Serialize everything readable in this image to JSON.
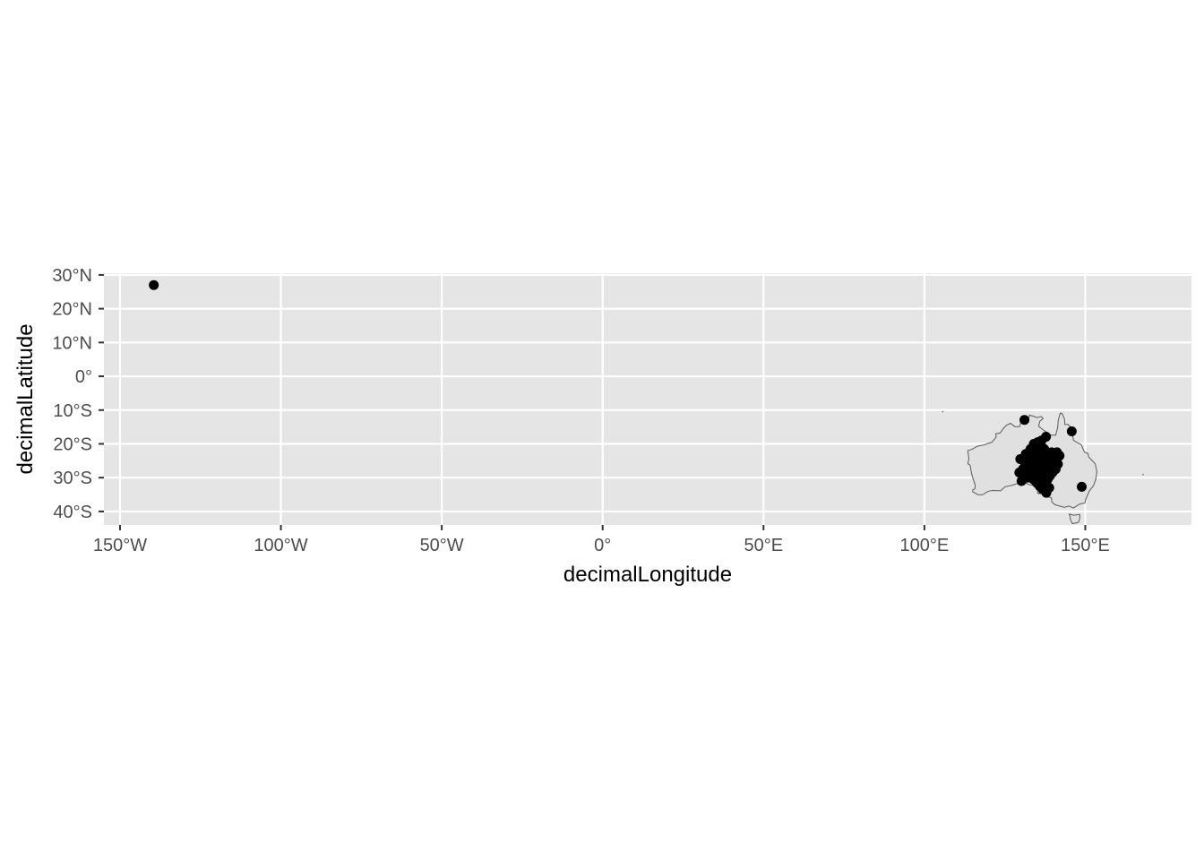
{
  "chart_data": {
    "type": "scatter",
    "xlabel": "decimalLongitude",
    "ylabel": "decimalLatitude",
    "xlim": [
      -155,
      183
    ],
    "ylim": [
      -44,
      30.5
    ],
    "x_ticks": [
      {
        "value": -150,
        "label": "150°W"
      },
      {
        "value": -100,
        "label": "100°W"
      },
      {
        "value": -50,
        "label": "50°W"
      },
      {
        "value": 0,
        "label": "0°"
      },
      {
        "value": 50,
        "label": "50°E"
      },
      {
        "value": 100,
        "label": "100°E"
      },
      {
        "value": 150,
        "label": "150°E"
      }
    ],
    "y_ticks": [
      {
        "value": 30,
        "label": "30°N"
      },
      {
        "value": 20,
        "label": "20°N"
      },
      {
        "value": 10,
        "label": "10°N"
      },
      {
        "value": 0,
        "label": "0°"
      },
      {
        "value": -10,
        "label": "10°S"
      },
      {
        "value": -20,
        "label": "20°S"
      },
      {
        "value": -30,
        "label": "30°S"
      },
      {
        "value": -40,
        "label": "40°S"
      }
    ],
    "grid": true,
    "colors": {
      "panel": "#e5e5e5",
      "grid": "#ffffff",
      "land_fill": "#e0e0e0",
      "land_outline": "#5a5a5a",
      "point": "#000000"
    },
    "basemap_outline": [
      [
        113.5,
        -22.0
      ],
      [
        114.2,
        -21.8
      ],
      [
        115.0,
        -21.5
      ],
      [
        116.5,
        -20.7
      ],
      [
        118.5,
        -20.3
      ],
      [
        121.0,
        -19.5
      ],
      [
        122.3,
        -18.0
      ],
      [
        122.2,
        -17.0
      ],
      [
        123.5,
        -16.8
      ],
      [
        124.5,
        -15.5
      ],
      [
        125.5,
        -14.5
      ],
      [
        126.8,
        -13.9
      ],
      [
        128.1,
        -14.9
      ],
      [
        129.6,
        -14.9
      ],
      [
        130.0,
        -13.5
      ],
      [
        130.3,
        -12.6
      ],
      [
        131.0,
        -12.2
      ],
      [
        132.6,
        -12.1
      ],
      [
        132.6,
        -11.5
      ],
      [
        133.8,
        -11.8
      ],
      [
        135.0,
        -12.2
      ],
      [
        136.3,
        -11.9
      ],
      [
        136.9,
        -12.5
      ],
      [
        135.9,
        -13.3
      ],
      [
        135.5,
        -14.8
      ],
      [
        137.0,
        -15.9
      ],
      [
        139.3,
        -17.4
      ],
      [
        140.8,
        -17.4
      ],
      [
        141.4,
        -15.2
      ],
      [
        141.6,
        -13.0
      ],
      [
        142.2,
        -10.9
      ],
      [
        142.8,
        -11.0
      ],
      [
        143.5,
        -12.5
      ],
      [
        143.7,
        -14.3
      ],
      [
        144.6,
        -14.2
      ],
      [
        145.4,
        -15.0
      ],
      [
        145.4,
        -16.4
      ],
      [
        146.1,
        -17.8
      ],
      [
        146.4,
        -19.0
      ],
      [
        148.8,
        -20.3
      ],
      [
        149.7,
        -22.4
      ],
      [
        150.9,
        -22.9
      ],
      [
        151.0,
        -23.8
      ],
      [
        152.1,
        -24.9
      ],
      [
        153.1,
        -25.9
      ],
      [
        153.6,
        -28.2
      ],
      [
        153.3,
        -30.4
      ],
      [
        152.6,
        -32.3
      ],
      [
        151.3,
        -33.9
      ],
      [
        150.7,
        -35.2
      ],
      [
        150.1,
        -36.5
      ],
      [
        149.9,
        -37.5
      ],
      [
        148.3,
        -37.8
      ],
      [
        146.3,
        -39.0
      ],
      [
        144.9,
        -38.4
      ],
      [
        143.5,
        -38.8
      ],
      [
        141.6,
        -38.3
      ],
      [
        140.6,
        -38.0
      ],
      [
        139.6,
        -37.2
      ],
      [
        139.5,
        -36.0
      ],
      [
        138.1,
        -35.6
      ],
      [
        138.4,
        -34.4
      ],
      [
        137.7,
        -35.1
      ],
      [
        136.9,
        -35.3
      ],
      [
        137.5,
        -34.0
      ],
      [
        137.9,
        -33.1
      ],
      [
        137.4,
        -33.6
      ],
      [
        136.4,
        -34.1
      ],
      [
        135.6,
        -34.8
      ],
      [
        135.2,
        -34.5
      ],
      [
        135.2,
        -33.9
      ],
      [
        134.6,
        -33.2
      ],
      [
        133.9,
        -32.3
      ],
      [
        132.3,
        -32.0
      ],
      [
        131.3,
        -31.5
      ],
      [
        129.5,
        -31.6
      ],
      [
        127.1,
        -32.3
      ],
      [
        125.1,
        -32.7
      ],
      [
        123.7,
        -33.9
      ],
      [
        121.3,
        -33.8
      ],
      [
        119.9,
        -34.0
      ],
      [
        118.0,
        -35.1
      ],
      [
        116.6,
        -35.0
      ],
      [
        115.0,
        -34.2
      ],
      [
        115.0,
        -33.6
      ],
      [
        115.7,
        -33.3
      ],
      [
        115.8,
        -32.2
      ],
      [
        115.0,
        -30.0
      ],
      [
        114.6,
        -28.5
      ],
      [
        114.2,
        -26.3
      ],
      [
        113.5,
        -25.9
      ],
      [
        113.8,
        -24.4
      ],
      [
        113.5,
        -22.0
      ]
    ],
    "basemap_islands": [
      [
        [
          145.0,
          -40.8
        ],
        [
          146.4,
          -41.1
        ],
        [
          148.3,
          -40.9
        ],
        [
          148.3,
          -42.1
        ],
        [
          147.9,
          -43.2
        ],
        [
          147.1,
          -43.4
        ],
        [
          146.0,
          -43.6
        ],
        [
          145.4,
          -42.5
        ],
        [
          145.2,
          -41.3
        ],
        [
          145.0,
          -40.8
        ]
      ],
      [
        [
          105.6,
          -10.4
        ],
        [
          105.7,
          -10.4
        ],
        [
          105.7,
          -10.5
        ],
        [
          105.6,
          -10.5
        ],
        [
          105.6,
          -10.4
        ]
      ],
      [
        [
          167.9,
          -29.0
        ],
        [
          168.0,
          -29.0
        ],
        [
          168.0,
          -29.1
        ],
        [
          167.9,
          -29.1
        ],
        [
          167.9,
          -29.0
        ]
      ]
    ],
    "series": [
      {
        "x": [
          -139.5,
          131.1,
          145.8,
          137.8,
          148.9,
          136.4,
          135.2,
          134.0,
          133.0,
          132.4,
          131.5,
          129.8,
          129.5,
          130.2,
          131.0,
          132.0,
          132.8,
          133.5,
          134.2,
          134.8,
          135.5,
          136.0,
          136.5,
          137.0,
          137.5,
          138.0,
          138.5,
          139.0,
          139.5,
          140.0,
          140.5,
          141.2,
          142.0,
          141.5,
          140.8,
          139.8,
          139.0,
          138.3,
          137.6,
          136.9,
          136.2,
          135.6,
          135.0,
          134.4,
          133.8,
          133.2,
          132.6,
          131.9,
          131.2,
          130.6,
          131.5,
          132.5,
          133.5,
          134.5,
          135.5,
          136.5,
          137.5,
          138.5,
          139.5,
          140.3,
          138.8,
          137.9,
          136.8,
          135.9,
          134.9,
          133.9,
          132.9,
          136.2,
          137.2,
          135.4,
          134.6,
          136.8,
          137.8,
          138.2,
          135.7,
          134.3,
          133.6,
          136.4,
          137.3,
          135.0,
          134.0,
          138.0
        ],
        "y": [
          27.0,
          -12.9,
          -16.3,
          -17.9,
          -32.7,
          -19.0,
          -19.5,
          -20.0,
          -21.5,
          -22.5,
          -23.0,
          -24.5,
          -28.5,
          -31.0,
          -27.0,
          -26.0,
          -25.0,
          -24.0,
          -23.0,
          -22.0,
          -21.0,
          -22.5,
          -23.5,
          -24.5,
          -22.0,
          -23.0,
          -24.0,
          -25.0,
          -22.5,
          -23.0,
          -24.5,
          -22.5,
          -23.5,
          -26.0,
          -27.5,
          -28.5,
          -29.5,
          -30.5,
          -31.5,
          -32.0,
          -31.0,
          -30.0,
          -29.0,
          -28.0,
          -27.0,
          -28.5,
          -29.5,
          -30.0,
          -29.0,
          -27.5,
          -25.5,
          -26.5,
          -27.5,
          -25.5,
          -26.5,
          -27.5,
          -28.5,
          -27.0,
          -26.5,
          -25.0,
          -33.0,
          -34.5,
          -33.5,
          -32.5,
          -31.5,
          -30.5,
          -26.0,
          -20.5,
          -21.5,
          -24.0,
          -25.0,
          -26.0,
          -27.0,
          -29.0,
          -28.0,
          -23.5,
          -24.5,
          -29.5,
          -30.0,
          -31.5,
          -26.5,
          -26.5
        ]
      }
    ]
  }
}
